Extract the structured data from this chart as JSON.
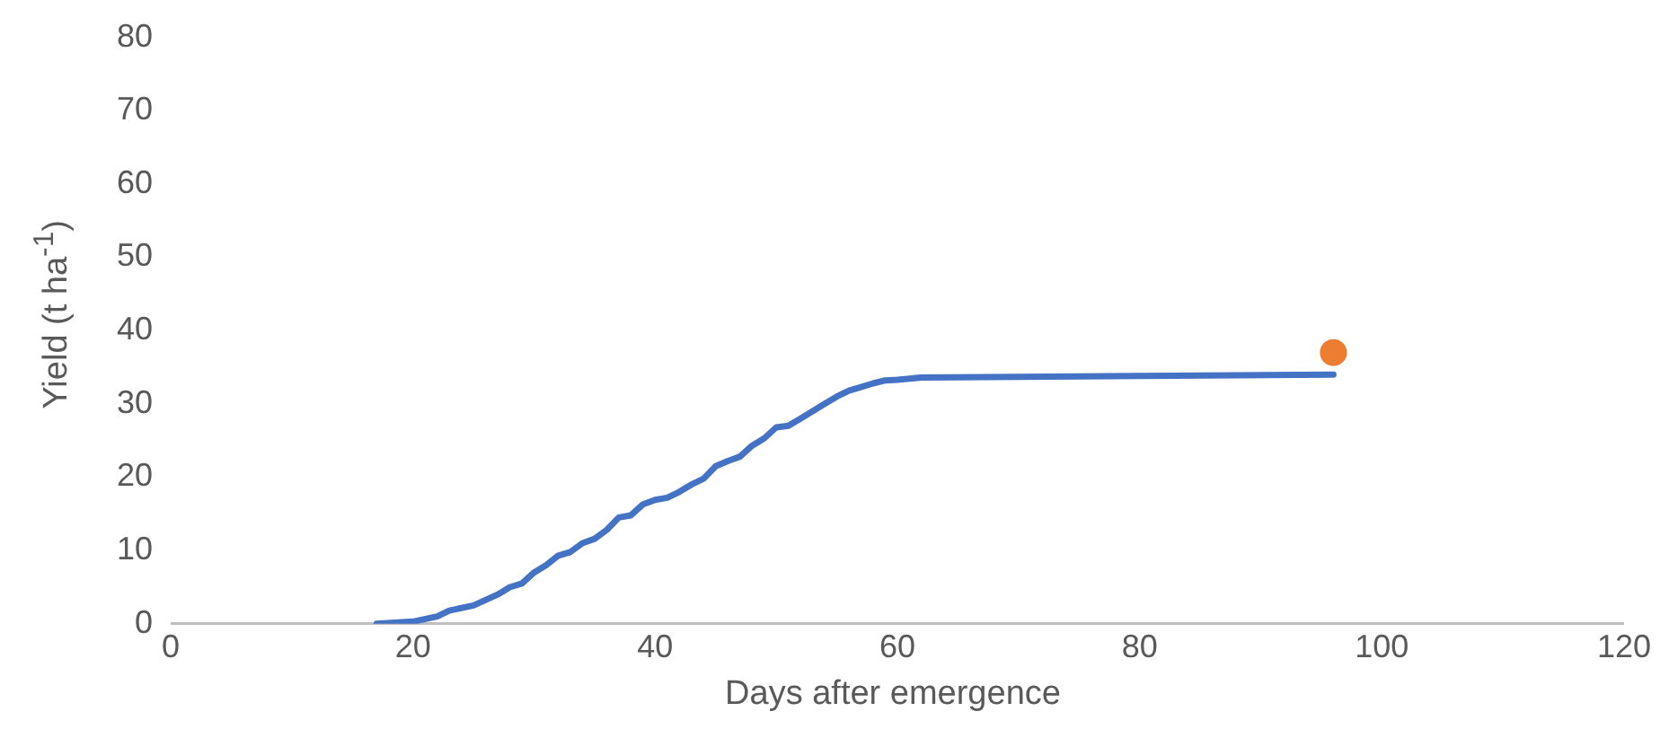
{
  "chart_data": {
    "type": "line",
    "xlabel": "Days after emergence",
    "ylabel": "Yield (t ha$^{-1}$)",
    "xlim": [
      0,
      120
    ],
    "xticks": [
      0,
      20,
      40,
      60,
      80,
      100,
      120
    ],
    "ylim": [
      0,
      80
    ],
    "yticks": [
      0,
      10,
      20,
      30,
      40,
      50,
      60,
      70,
      80
    ],
    "grid": false,
    "legend": false,
    "series": [
      {
        "color": "#4472c4",
        "marker": "none",
        "x": [
          17,
          20,
          22,
          23,
          25,
          27,
          28,
          29,
          30,
          31,
          32,
          33,
          34,
          35,
          36,
          37,
          38,
          39,
          40,
          41,
          42,
          43,
          44,
          45,
          46,
          47,
          48,
          49,
          50,
          51,
          52,
          53,
          54,
          55,
          56,
          57,
          58,
          59,
          60,
          62,
          70,
          80,
          96
        ],
        "values": [
          0,
          0.3,
          1,
          1.8,
          2.5,
          4,
          5,
          5.5,
          7,
          8,
          9.3,
          9.8,
          11,
          11.6,
          12.8,
          14.5,
          14.8,
          16.3,
          16.9,
          17.2,
          18,
          19,
          19.8,
          21.5,
          22.2,
          22.8,
          24.3,
          25.3,
          26.8,
          27,
          28,
          29,
          30,
          31,
          31.8,
          32.3,
          32.8,
          33.2,
          33.3,
          33.6,
          33.7,
          33.8,
          34
        ]
      },
      {
        "type": "scatter",
        "color": "#ed7d31",
        "marker": "circle",
        "x": [
          96
        ],
        "values": [
          37
        ]
      }
    ]
  }
}
